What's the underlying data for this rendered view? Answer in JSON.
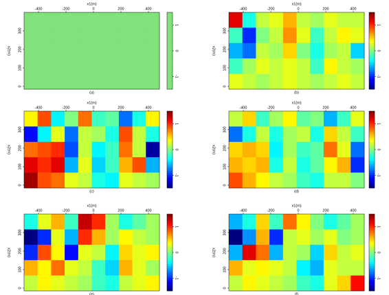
{
  "chart_data": [
    {
      "type": "heatmap",
      "caption": "(a)",
      "xlabel": "x1(m)",
      "ylabel": "x2(m)",
      "xlim": [
        -505,
        480
      ],
      "ylim": [
        -15,
        400
      ],
      "xticks": [
        -400,
        -200,
        0,
        200,
        400
      ],
      "yticks": [
        0,
        100,
        200,
        300
      ],
      "zlim": [
        -1.5,
        1.5
      ],
      "zticks": [
        -1,
        0,
        1
      ],
      "colormap": "uniform",
      "color": "#80e27a",
      "z": [
        [
          0,
          0,
          0,
          0,
          0,
          0,
          0,
          0,
          0,
          0
        ],
        [
          0,
          0,
          0,
          0,
          0,
          0,
          0,
          0,
          0,
          0
        ],
        [
          0,
          0,
          0,
          0,
          0,
          0,
          0,
          0,
          0,
          0
        ],
        [
          0,
          0,
          0,
          0,
          0,
          0,
          0,
          0,
          0,
          0
        ],
        [
          0,
          0,
          0,
          0,
          0,
          0,
          0,
          0,
          0,
          0
        ]
      ]
    },
    {
      "type": "heatmap",
      "caption": "(b)",
      "xlabel": "x1(m)",
      "ylabel": "x2(m)",
      "xlim": [
        -505,
        480
      ],
      "ylim": [
        -15,
        400
      ],
      "xticks": [
        -400,
        -200,
        0,
        200,
        400
      ],
      "yticks": [
        0,
        100,
        200,
        300
      ],
      "zlim": [
        -1.5,
        1.5
      ],
      "zticks": [
        -1,
        0,
        1
      ],
      "colormap": "jet",
      "z": [
        [
          1.2,
          -0.3,
          0.2,
          0.3,
          0.6,
          0.2,
          0.1,
          0.3,
          0.2,
          0.2
        ],
        [
          -0.2,
          -1.0,
          0.0,
          0.2,
          0.7,
          0.3,
          -0.2,
          0.2,
          0.4,
          0.3
        ],
        [
          -0.6,
          -0.8,
          0.2,
          0.1,
          0.5,
          0.0,
          -0.3,
          0.1,
          0.2,
          -0.5
        ],
        [
          -0.2,
          0.1,
          0.3,
          0.2,
          0.3,
          0.2,
          -0.2,
          0.4,
          0.2,
          0.1
        ],
        [
          0.3,
          0.2,
          0.1,
          0.2,
          0.3,
          0.2,
          0.1,
          0.2,
          0.3,
          0.2
        ]
      ]
    },
    {
      "type": "heatmap",
      "caption": "(c)",
      "xlabel": "x1(m)",
      "ylabel": "x2(m)",
      "xlim": [
        -505,
        480
      ],
      "ylim": [
        -15,
        400
      ],
      "xticks": [
        -400,
        -200,
        0,
        200,
        400
      ],
      "yticks": [
        0,
        100,
        200,
        300
      ],
      "zlim": [
        -1.5,
        1.5
      ],
      "zticks": [
        -1,
        0,
        1
      ],
      "colormap": "jet",
      "z": [
        [
          0.4,
          0.9,
          -0.4,
          0.0,
          0.8,
          -0.2,
          -0.1,
          -0.8,
          -0.3,
          0.4
        ],
        [
          -1.1,
          -0.4,
          0.3,
          -0.8,
          0.2,
          0.1,
          -0.3,
          0.9,
          0.2,
          -0.3
        ],
        [
          0.8,
          0.9,
          1.0,
          -0.9,
          0.2,
          -0.4,
          -0.2,
          0.8,
          0.2,
          -1.4
        ],
        [
          1.2,
          1.0,
          1.2,
          -0.6,
          0.3,
          -0.5,
          -0.2,
          0.6,
          0.9,
          -0.6
        ],
        [
          1.4,
          0.9,
          0.8,
          0.3,
          0.2,
          -0.3,
          -0.4,
          0.3,
          0.2,
          0.1
        ]
      ]
    },
    {
      "type": "heatmap",
      "caption": "(d)",
      "xlabel": "x1(m)",
      "ylabel": "x2(m)",
      "xlim": [
        -505,
        480
      ],
      "ylim": [
        -15,
        400
      ],
      "xticks": [
        -400,
        -200,
        0,
        200,
        400
      ],
      "yticks": [
        0,
        100,
        200,
        300
      ],
      "zlim": [
        -1.5,
        1.5
      ],
      "zticks": [
        -1,
        0,
        1
      ],
      "colormap": "jet",
      "z": [
        [
          0.2,
          0.5,
          -0.2,
          0.1,
          0.4,
          -0.1,
          0.0,
          -0.6,
          -0.2,
          0.3
        ],
        [
          -0.8,
          -0.3,
          0.2,
          -0.3,
          0.1,
          0.2,
          -0.3,
          0.5,
          0.2,
          -0.2
        ],
        [
          0.5,
          0.6,
          0.5,
          -0.4,
          0.1,
          -0.2,
          -0.1,
          0.8,
          0.3,
          -0.8
        ],
        [
          0.6,
          0.5,
          0.6,
          -0.3,
          0.2,
          -0.3,
          -0.1,
          0.4,
          0.6,
          -1.0
        ],
        [
          0.9,
          0.6,
          0.4,
          0.2,
          0.1,
          -0.2,
          -0.3,
          0.2,
          0.2,
          0.0
        ]
      ]
    },
    {
      "type": "heatmap",
      "caption": "(e)",
      "xlabel": "x1(m)",
      "ylabel": "x2(m)",
      "xlim": [
        -505,
        480
      ],
      "ylim": [
        -15,
        400
      ],
      "xticks": [
        -400,
        -200,
        0,
        200,
        400
      ],
      "yticks": [
        0,
        100,
        200,
        300
      ],
      "zlim": [
        -1.5,
        1.5
      ],
      "zticks": [
        -1,
        0,
        1
      ],
      "colormap": "jet",
      "z": [
        [
          -0.3,
          0.3,
          0.6,
          -0.2,
          1.3,
          1.0,
          0.1,
          -0.3,
          -0.1,
          0.1
        ],
        [
          -1.5,
          -1.0,
          0.3,
          -0.6,
          1.0,
          0.6,
          0.1,
          0.4,
          0.2,
          0.1
        ],
        [
          -1.0,
          0.9,
          0.4,
          -1.1,
          0.3,
          0.2,
          -0.4,
          0.5,
          0.3,
          0.4
        ],
        [
          0.6,
          0.4,
          0.8,
          0.3,
          0.2,
          -0.2,
          -0.5,
          0.6,
          0.3,
          0.1
        ],
        [
          0.2,
          0.4,
          0.3,
          0.2,
          0.1,
          -0.2,
          -0.3,
          0.2,
          0.3,
          0.4
        ]
      ]
    },
    {
      "type": "heatmap",
      "caption": "(f)",
      "xlabel": "x1(m)",
      "ylabel": "x2(m)",
      "xlim": [
        -505,
        480
      ],
      "ylim": [
        -15,
        400
      ],
      "xticks": [
        -400,
        -200,
        0,
        200,
        400
      ],
      "yticks": [
        0,
        100,
        200,
        300
      ],
      "zlim": [
        -1.5,
        1.5
      ],
      "zticks": [
        -1,
        0,
        1
      ],
      "colormap": "jet",
      "z": [
        [
          -0.6,
          -0.3,
          0.5,
          -0.2,
          0.8,
          0.4,
          0.0,
          -0.3,
          -0.1,
          0.1
        ],
        [
          -1.5,
          -0.7,
          0.6,
          -1.0,
          0.2,
          0.3,
          0.1,
          0.3,
          0.0,
          0.1
        ],
        [
          -0.6,
          1.2,
          0.8,
          -0.6,
          0.2,
          0.1,
          -0.5,
          0.5,
          0.2,
          0.3
        ],
        [
          0.6,
          0.3,
          0.4,
          0.3,
          0.2,
          -0.4,
          -0.6,
          0.3,
          0.2,
          0.2
        ],
        [
          0.2,
          0.4,
          0.3,
          0.2,
          0.1,
          -0.2,
          -0.3,
          0.3,
          0.5,
          1.1
        ]
      ]
    }
  ]
}
